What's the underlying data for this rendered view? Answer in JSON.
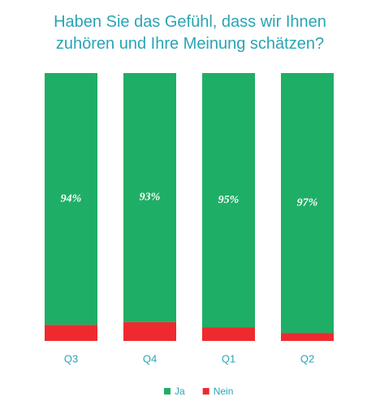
{
  "chart_data": {
    "type": "stacked_bar",
    "title": "Haben Sie das Gefühl, dass wir Ihnen zuhören und Ihre Meinung schätzen?",
    "categories": [
      "Q3",
      "Q4",
      "Q1",
      "Q2"
    ],
    "series": [
      {
        "name": "Ja",
        "color": "#1fae66",
        "values": [
          94,
          93,
          95,
          97
        ],
        "value_labels": [
          "94%",
          "93%",
          "95%",
          "97%"
        ]
      },
      {
        "name": "Nein",
        "color": "#ee2a2e",
        "values": [
          6,
          7,
          5,
          3
        ]
      }
    ]
  }
}
